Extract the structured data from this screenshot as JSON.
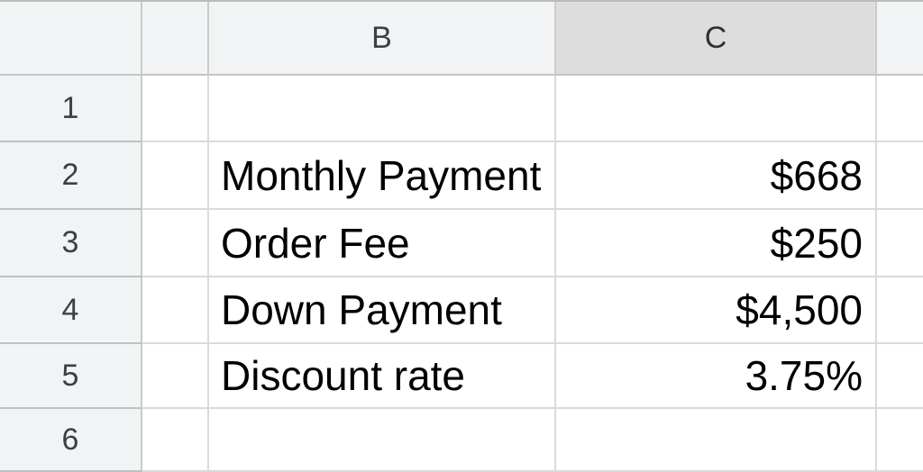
{
  "app": {
    "type": "spreadsheet-grid",
    "selected_column": "C"
  },
  "colors": {
    "header_bg": "#f1f3f4",
    "selected_header_bg": "#dcdddc",
    "gridline": "#d9dbda",
    "header_gridline": "#c2c5c6",
    "header_text": "#3c4043",
    "cell_text": "#000000",
    "cell_bg": "#ffffff"
  },
  "grid": {
    "col_headers": {
      "a": "",
      "b": "B",
      "c": "C",
      "d": ""
    },
    "row_headers": [
      "1",
      "2",
      "3",
      "4",
      "5",
      "6"
    ],
    "rows": [
      {
        "a": "",
        "b": "",
        "c": "",
        "d": ""
      },
      {
        "a": "",
        "b": "Monthly Payment",
        "c": "$668",
        "d": ""
      },
      {
        "a": "",
        "b": "Order Fee",
        "c": "$250",
        "d": ""
      },
      {
        "a": "",
        "b": "Down Payment",
        "c": "$4,500",
        "d": ""
      },
      {
        "a": "",
        "b": "Discount rate",
        "c": "3.75%",
        "d": ""
      },
      {
        "a": "",
        "b": "",
        "c": "",
        "d": ""
      }
    ]
  }
}
